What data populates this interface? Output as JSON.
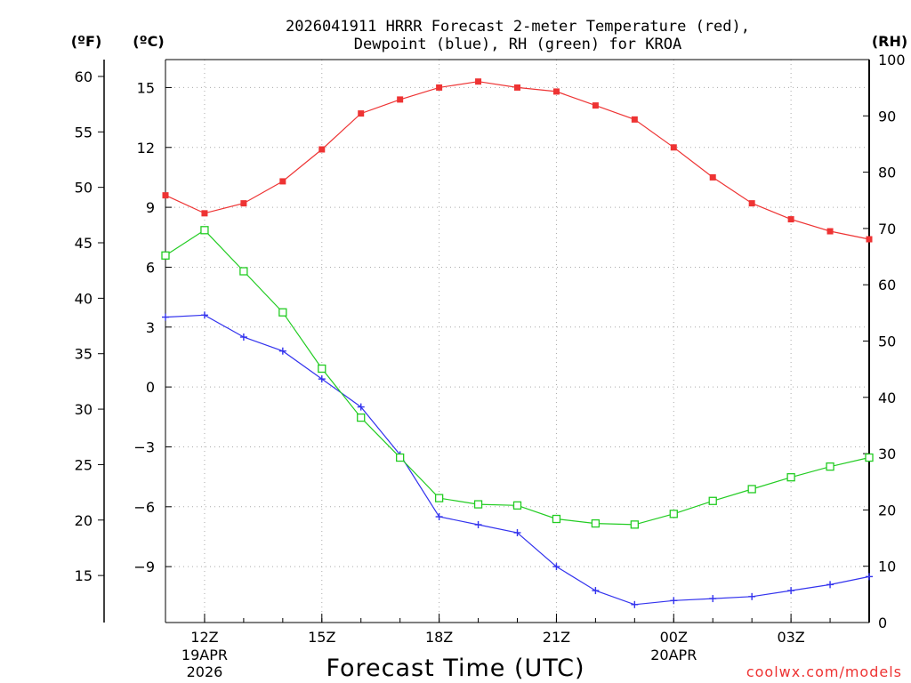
{
  "chart_data": {
    "type": "line",
    "title_line1": "2026041911 HRRR Forecast 2-meter Temperature (red),",
    "title_line2": "Dewpoint (blue), RH (green) for KROA",
    "xlabel": "Forecast Time (UTC)",
    "credit": "coolwx.com/models",
    "axis_unit_f": "(ºF)",
    "axis_unit_c": "(ºC)",
    "axis_unit_rh": "(RH)",
    "x_hours": [
      -1,
      0,
      1,
      2,
      3,
      4,
      5,
      6,
      7,
      8,
      9,
      10,
      11,
      12,
      13,
      14,
      15,
      16,
      17
    ],
    "x_range": [
      -1,
      17
    ],
    "x_ticks": [
      {
        "h": 0,
        "label": "12Z",
        "sub1": "19APR",
        "sub2": "2026"
      },
      {
        "h": 3,
        "label": "15Z",
        "sub1": "",
        "sub2": ""
      },
      {
        "h": 6,
        "label": "18Z",
        "sub1": "",
        "sub2": ""
      },
      {
        "h": 9,
        "label": "21Z",
        "sub1": "",
        "sub2": ""
      },
      {
        "h": 12,
        "label": "00Z",
        "sub1": "20APR",
        "sub2": ""
      },
      {
        "h": 15,
        "label": "03Z",
        "sub1": "",
        "sub2": ""
      }
    ],
    "c_range": [
      -11.8,
      16.4
    ],
    "c_ticks": [
      "15",
      "12",
      "9",
      "6",
      "3",
      "0",
      "−3",
      "−6",
      "−9"
    ],
    "c_tick_values": [
      15,
      12,
      9,
      6,
      3,
      0,
      -3,
      -6,
      -9
    ],
    "f_ticks": [
      "60",
      "55",
      "50",
      "45",
      "40",
      "35",
      "30",
      "25",
      "20",
      "15"
    ],
    "f_tick_values": [
      60,
      55,
      50,
      45,
      40,
      35,
      30,
      25,
      20,
      15
    ],
    "rh_range": [
      0,
      100
    ],
    "rh_ticks": [
      "100",
      "90",
      "80",
      "70",
      "60",
      "50",
      "40",
      "30",
      "20",
      "10",
      "0"
    ],
    "rh_tick_values": [
      100,
      90,
      80,
      70,
      60,
      50,
      40,
      30,
      20,
      10,
      0
    ],
    "series": [
      {
        "name": "Temperature (ºC)",
        "color": "#ee3333",
        "marker": "filled-square",
        "values": [
          9.6,
          8.7,
          9.2,
          10.3,
          11.9,
          13.7,
          14.4,
          15.0,
          15.3,
          15.0,
          14.8,
          14.1,
          13.4,
          12.0,
          10.5,
          9.2,
          8.4,
          7.8,
          7.4
        ]
      },
      {
        "name": "Dewpoint (ºC)",
        "color": "#3333ee",
        "marker": "plus",
        "values": [
          3.5,
          3.6,
          2.5,
          1.8,
          0.4,
          -1.0,
          -3.4,
          -6.5,
          -6.9,
          -7.3,
          -9.0,
          -10.2,
          -10.9,
          -10.7,
          -10.6,
          -10.5,
          -10.2,
          -9.9,
          -9.5
        ]
      },
      {
        "name": "RH (%)",
        "color": "#22cc22",
        "marker": "open-square",
        "values": [
          65.2,
          69.7,
          62.4,
          55.1,
          45.1,
          36.4,
          29.3,
          22.1,
          21.0,
          20.8,
          18.4,
          17.6,
          17.4,
          19.3,
          21.6,
          23.7,
          25.8,
          27.7,
          29.3
        ]
      }
    ]
  }
}
